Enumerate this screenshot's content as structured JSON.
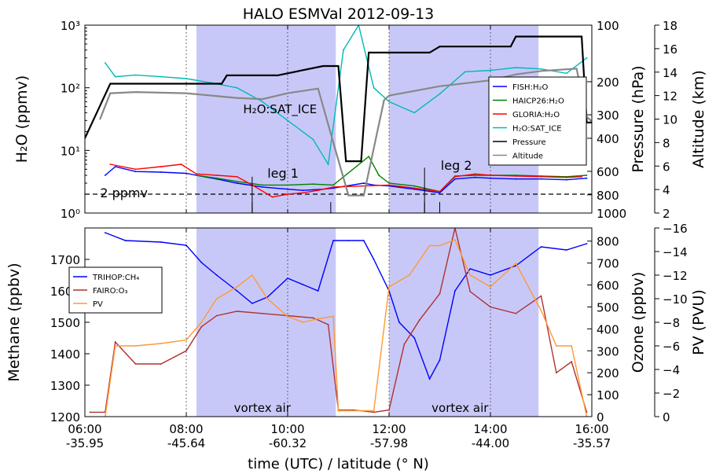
{
  "chart_data": [
    {
      "panel": "top",
      "type": "line",
      "title": "HALO ESMVal 2012-09-13",
      "ylabel_left": "H2O (ppmv)",
      "ylabel_right1": "Pressure (hPa)",
      "ylabel_right2": "Altitude (km)",
      "y_left_scale": "log",
      "y_left_range": [
        1,
        1000
      ],
      "y_left_ticks": [
        "10⁰",
        "10¹",
        "10²",
        "10³"
      ],
      "y_right1_scale": "log-inverted",
      "y_right1_range": [
        1000,
        100
      ],
      "y_right1_ticks": [
        "100",
        "200",
        "300",
        "400",
        "600",
        "800",
        "1000"
      ],
      "y_right2_range": [
        2,
        18
      ],
      "y_right2_ticks": [
        "2",
        "4",
        "6",
        "8",
        "10",
        "12",
        "14",
        "16",
        "18"
      ],
      "legend": [
        "FISH:H2O",
        "HAICP26:H2O",
        "GLORIA:H2O",
        "H2O:SAT_ICE",
        "Pressure",
        "Altitude"
      ],
      "legend_position": "right",
      "annotations": [
        "H2O:SAT_ICE",
        "leg 1",
        "leg 2",
        "2 ppmv"
      ],
      "reference_line_ppmv": 2,
      "series": [
        {
          "name": "FISH:H2O",
          "color": "#0000ff",
          "x": [
            6.4,
            6.6,
            7.0,
            7.5,
            8.0,
            8.2,
            8.6,
            9.0,
            9.5,
            10.0,
            10.3,
            10.7,
            10.9,
            11.5,
            11.7,
            12.0,
            12.5,
            13.0,
            13.3,
            13.7,
            14.0,
            14.5,
            15.0,
            15.5,
            15.9
          ],
          "y": [
            4,
            5.5,
            4.6,
            4.5,
            4.3,
            4.0,
            3.5,
            3.0,
            2.6,
            2.4,
            2.3,
            2.4,
            2.5,
            3.0,
            2.8,
            2.7,
            2.4,
            2.1,
            3.5,
            3.7,
            3.6,
            3.5,
            3.5,
            3.4,
            3.6
          ]
        },
        {
          "name": "HAICP26:H2O",
          "color": "#008000",
          "x": [
            8.2,
            8.6,
            9.0,
            9.5,
            10.0,
            10.5,
            10.9,
            11.6,
            11.8,
            12.0,
            12.5,
            13.0,
            13.3,
            13.7,
            14.0,
            14.5,
            15.0,
            15.5,
            15.9
          ],
          "y": [
            4.0,
            3.6,
            3.2,
            2.8,
            2.8,
            2.9,
            2.8,
            8,
            4,
            3.0,
            2.7,
            2.2,
            3.9,
            4.0,
            4.0,
            4.0,
            3.9,
            3.8,
            4.0
          ]
        },
        {
          "name": "GLORIA:H2O",
          "color": "#ff0000",
          "x": [
            6.5,
            7.0,
            7.5,
            7.9,
            8.2,
            8.6,
            9.0,
            9.3,
            9.7,
            10.0,
            10.3,
            10.6,
            10.9,
            12.0,
            12.5,
            13.0,
            13.3,
            13.7,
            14.0,
            14.5,
            15.0,
            15.5,
            15.8
          ],
          "y": [
            6,
            5,
            5.5,
            6,
            4.2,
            4.0,
            3.8,
            2.8,
            1.8,
            2.0,
            2.1,
            2.3,
            2.6,
            2.8,
            2.5,
            2.2,
            3.8,
            4.2,
            4.0,
            3.9,
            3.8,
            3.7,
            3.8
          ]
        },
        {
          "name": "H2O:SAT_ICE",
          "color": "#00b8b8",
          "x": [
            6.4,
            6.6,
            7.0,
            7.5,
            8.0,
            8.5,
            9.0,
            9.5,
            10.0,
            10.5,
            10.8,
            11.1,
            11.4,
            11.7,
            12.0,
            12.5,
            13.0,
            13.5,
            14.0,
            14.5,
            15.0,
            15.5,
            15.9
          ],
          "y": [
            250,
            150,
            160,
            150,
            140,
            120,
            100,
            60,
            30,
            15,
            6,
            400,
            1000,
            100,
            60,
            40,
            80,
            180,
            190,
            210,
            200,
            170,
            300
          ]
        },
        {
          "name": "Pressure",
          "color": "#000000",
          "unit": "hPa",
          "x": [
            6.0,
            6.5,
            8.0,
            8.7,
            8.8,
            9.8,
            10.7,
            11.0,
            11.15,
            11.45,
            11.6,
            12.0,
            12.8,
            13.0,
            14.4,
            14.5,
            15.8,
            15.9,
            16.0
          ],
          "y": [
            400,
            205,
            205,
            205,
            185,
            185,
            165,
            165,
            530,
            530,
            140,
            140,
            140,
            130,
            130,
            115,
            115,
            330,
            330
          ]
        },
        {
          "name": "Altitude",
          "color": "#888888",
          "unit": "km",
          "x": [
            6.3,
            6.5,
            7.0,
            8.0,
            8.5,
            9.0,
            9.5,
            10.0,
            10.6,
            10.9,
            11.2,
            11.5,
            11.9,
            12.0,
            13.0,
            14.0,
            14.5,
            15.0,
            15.7,
            15.9,
            16.0
          ],
          "y": [
            10.0,
            12.2,
            12.3,
            12.2,
            12.0,
            11.8,
            11.7,
            12.2,
            12.6,
            8.0,
            3.5,
            3.5,
            11.6,
            12.0,
            12.8,
            13.3,
            13.8,
            14.1,
            14.3,
            10.2,
            9.8
          ]
        }
      ]
    },
    {
      "panel": "bottom",
      "type": "line",
      "ylabel_left": "Methane (ppbv)",
      "ylabel_right1": "Ozone (ppbv)",
      "ylabel_right2": "PV (PVU)",
      "y_left_range": [
        1200,
        1800
      ],
      "y_left_ticks": [
        "1200",
        "1300",
        "1400",
        "1500",
        "1600",
        "1700"
      ],
      "y_right1_range": [
        0,
        860
      ],
      "y_right1_ticks": [
        "0",
        "100",
        "200",
        "300",
        "400",
        "500",
        "600",
        "700",
        "800"
      ],
      "y_right2_range": [
        0,
        -16
      ],
      "y_right2_ticks": [
        "0",
        "−2",
        "−4",
        "−6",
        "−8",
        "−10",
        "−12",
        "−14",
        "−16"
      ],
      "legend": [
        "TRIHOP:CH4",
        "FAIRO:O3",
        "PV"
      ],
      "legend_position": "left",
      "annotations": [
        "vortex air",
        "vortex air"
      ],
      "series": [
        {
          "name": "TRIHOP:CH4",
          "color": "#0000ff",
          "unit": "ppbv",
          "x": [
            6.4,
            6.8,
            7.5,
            8.0,
            8.3,
            8.6,
            9.0,
            9.3,
            9.6,
            10.0,
            10.3,
            10.6,
            10.9,
            11.2,
            11.5,
            11.7,
            12.0,
            12.2,
            12.5,
            12.8,
            13.0,
            13.3,
            13.6,
            14.0,
            14.5,
            15.0,
            15.5,
            15.9
          ],
          "y": [
            1785,
            1760,
            1755,
            1745,
            1690,
            1650,
            1600,
            1560,
            1580,
            1640,
            1620,
            1600,
            1760,
            1760,
            1760,
            1700,
            1600,
            1500,
            1450,
            1320,
            1380,
            1600,
            1670,
            1650,
            1680,
            1740,
            1730,
            1750
          ]
        },
        {
          "name": "FAIRO:O3",
          "color": "#b03030",
          "unit": "ppbv",
          "x": [
            6.1,
            6.4,
            6.6,
            7.0,
            7.5,
            8.0,
            8.3,
            8.6,
            9.0,
            9.5,
            10.0,
            10.5,
            10.8,
            11.0,
            11.3,
            11.7,
            12.0,
            12.3,
            12.6,
            13.0,
            13.3,
            13.6,
            14.0,
            14.5,
            15.0,
            15.3,
            15.6,
            15.9
          ],
          "y": [
            20,
            20,
            340,
            240,
            240,
            300,
            410,
            460,
            480,
            470,
            460,
            450,
            420,
            30,
            30,
            20,
            30,
            330,
            440,
            560,
            860,
            570,
            500,
            470,
            550,
            200,
            250,
            20
          ]
        },
        {
          "name": "PV",
          "color": "#ff9933",
          "unit": "PVU",
          "x": [
            6.4,
            6.6,
            7.0,
            7.5,
            8.0,
            8.3,
            8.6,
            9.0,
            9.3,
            9.6,
            10.0,
            10.3,
            10.6,
            10.9,
            11.0,
            11.5,
            11.7,
            12.0,
            12.4,
            12.8,
            13.0,
            13.3,
            13.6,
            14.0,
            14.5,
            15.0,
            15.3,
            15.6,
            15.9
          ],
          "y": [
            0,
            -6,
            -6,
            -6.2,
            -6.5,
            -8,
            -10,
            -11,
            -12,
            -10,
            -8.5,
            -8,
            -8.3,
            -8.5,
            -0.5,
            -0.5,
            -0.5,
            -11,
            -12,
            -14.5,
            -14.5,
            -15,
            -12,
            -11,
            -13,
            -9,
            -6,
            -6,
            0
          ]
        }
      ]
    }
  ],
  "shared_x": {
    "xlabel": "time (UTC) / latitude (° N)",
    "range_hours": [
      6,
      16
    ],
    "time_ticks": [
      "06:00",
      "08:00",
      "10:00",
      "12:00",
      "14:00",
      "16:00"
    ],
    "latitude_ticks": [
      "-35.95",
      "-45.64",
      "-60.32",
      "-57.98",
      "-44.00",
      "-35.57"
    ],
    "vortex_spans_hours": [
      [
        8.2,
        10.95
      ],
      [
        12.0,
        14.95
      ]
    ],
    "vertical_dotted_lines_hours": [
      8.0,
      10.0,
      12.0,
      14.0
    ],
    "vortex_color": "#c8c8f8"
  }
}
